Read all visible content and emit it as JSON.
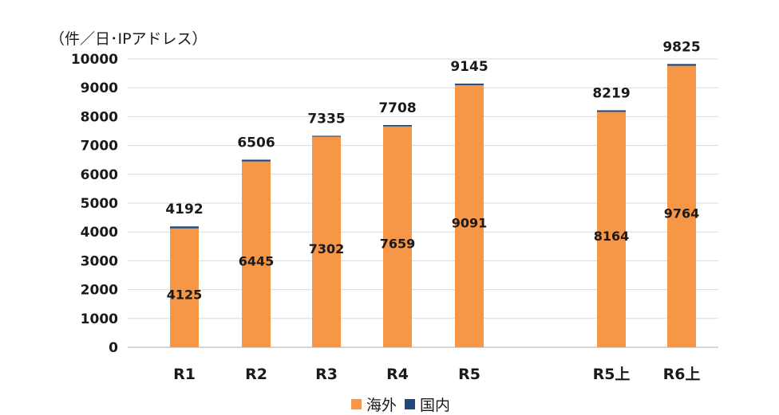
{
  "chart_data": {
    "type": "bar",
    "stacked": true,
    "unit_label": "（件／日･IPアドレス）",
    "categories": [
      "R1",
      "R2",
      "R3",
      "R4",
      "R5",
      "R5上",
      "R6上"
    ],
    "series": [
      {
        "name": "海外",
        "color": "#f79646",
        "values": [
          4125,
          6445,
          7302,
          7659,
          9091,
          8164,
          9764
        ]
      },
      {
        "name": "国内",
        "color": "#1f497d",
        "values": [
          67,
          61,
          33,
          49,
          54,
          55,
          61
        ]
      }
    ],
    "totals": [
      4192,
      6506,
      7335,
      7708,
      9145,
      8219,
      9825
    ],
    "ylim": [
      0,
      10000
    ],
    "yticks": [
      0,
      1000,
      2000,
      3000,
      4000,
      5000,
      6000,
      7000,
      8000,
      9000,
      10000
    ],
    "grid": true,
    "legend_position": "bottom"
  }
}
